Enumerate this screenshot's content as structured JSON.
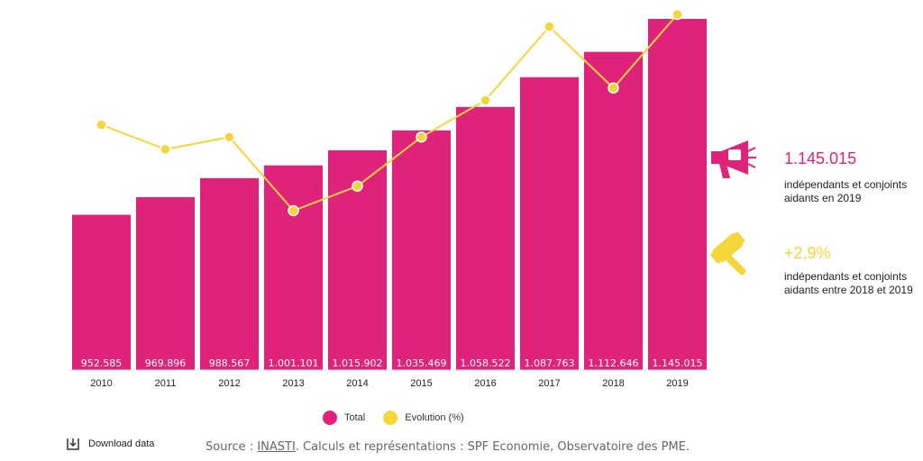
{
  "chart_data": {
    "type": "bar+line",
    "categories": [
      "2010",
      "2011",
      "2012",
      "2013",
      "2014",
      "2015",
      "2016",
      "2017",
      "2018",
      "2019"
    ],
    "series": [
      {
        "name": "Total",
        "type": "bar",
        "color": "#e0237a",
        "values": [
          952585,
          969896,
          988567,
          1001101,
          1015902,
          1035469,
          1058522,
          1087763,
          1112646,
          1145015
        ],
        "labels": [
          "952.585",
          "969.896",
          "988.567",
          "1.001.101",
          "1.015.902",
          "1.035.469",
          "1.058.522",
          "1.087.763",
          "1.112.646",
          "1.145.015"
        ]
      },
      {
        "name": "Evolution (%)",
        "type": "line",
        "color": "#f5d63a",
        "values": [
          2.0,
          1.8,
          1.9,
          1.3,
          1.5,
          1.9,
          2.2,
          2.8,
          2.3,
          2.9
        ]
      }
    ],
    "bar_ylim": [
      0,
      1145015
    ],
    "line_ylim": [
      0,
      2.9
    ],
    "legend": "bottom"
  },
  "legend": {
    "total_label": "Total",
    "evolution_label": "Evolution (%)"
  },
  "kpis": [
    {
      "value": "1.145.015",
      "text": "indépendants et conjoints aidants en 2019",
      "icon": "megaphone-icon",
      "color": "#e0237a"
    },
    {
      "value": "+2,9%",
      "text": "indépendants et conjoints aidants entre 2018 et 2019",
      "icon": "gavel-icon",
      "color": "#f5d63a"
    }
  ],
  "footer": {
    "download_label": "Download data",
    "source_prefix": "Source : ",
    "source_link": "INASTI",
    "source_suffix": ". Calculs et représentations : SPF Economie, Observatoire des PME."
  }
}
